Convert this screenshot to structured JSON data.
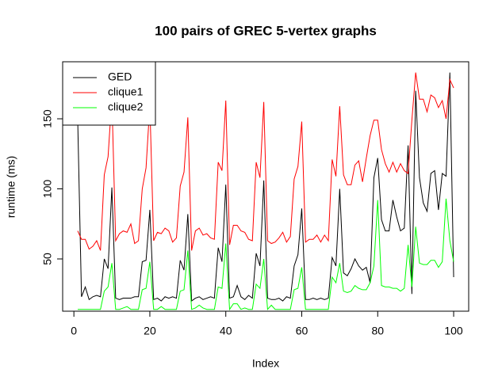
{
  "chart_data": {
    "type": "line",
    "title": "100 pairs of GREC 5-vertex graphs",
    "x_label": "Index",
    "y_label": "runtime (ms)",
    "x": [
      1,
      2,
      3,
      4,
      5,
      6,
      7,
      8,
      9,
      10,
      11,
      12,
      13,
      14,
      15,
      16,
      17,
      18,
      19,
      20,
      21,
      22,
      23,
      24,
      25,
      26,
      27,
      28,
      29,
      30,
      31,
      32,
      33,
      34,
      35,
      36,
      37,
      38,
      39,
      40,
      41,
      42,
      43,
      44,
      45,
      46,
      47,
      48,
      49,
      50,
      51,
      52,
      53,
      54,
      55,
      56,
      57,
      58,
      59,
      60,
      61,
      62,
      63,
      64,
      65,
      66,
      67,
      68,
      69,
      70,
      71,
      72,
      73,
      74,
      75,
      76,
      77,
      78,
      79,
      80,
      81,
      82,
      83,
      84,
      85,
      86,
      87,
      88,
      89,
      90,
      91,
      92,
      93,
      94,
      95,
      96,
      97,
      98,
      99,
      100
    ],
    "series": [
      {
        "name": "GED",
        "color": "#000000",
        "values": [
          150,
          23,
          30,
          21,
          23,
          24,
          23,
          50,
          43,
          101,
          22,
          21,
          22,
          22,
          22,
          23,
          23,
          48,
          49,
          85,
          21,
          22,
          20,
          23,
          22,
          23,
          22,
          49,
          42,
          82,
          20,
          22,
          23,
          21,
          22,
          23,
          22,
          58,
          48,
          103,
          22,
          23,
          31,
          23,
          21,
          24,
          22,
          54,
          45,
          106,
          22,
          21,
          21,
          22,
          20,
          23,
          22,
          45,
          53,
          86,
          21,
          21,
          22,
          21,
          22,
          21,
          22,
          51,
          45,
          100,
          40,
          38,
          43,
          50,
          45,
          42,
          44,
          33,
          108,
          122,
          78,
          70,
          70,
          92,
          80,
          70,
          72,
          131,
          25,
          170,
          108,
          90,
          84,
          111,
          113,
          85,
          111,
          109,
          183,
          37
        ]
      },
      {
        "name": "clique1",
        "color": "#ff0000",
        "values": [
          70,
          64,
          64,
          57,
          59,
          63,
          56,
          110,
          123,
          165,
          63,
          68,
          70,
          69,
          75,
          61,
          63,
          100,
          115,
          160,
          63,
          69,
          68,
          72,
          70,
          62,
          65,
          102,
          112,
          151,
          56,
          70,
          72,
          67,
          68,
          65,
          64,
          119,
          113,
          163,
          60,
          74,
          74,
          70,
          69,
          64,
          63,
          119,
          108,
          162,
          63,
          61,
          62,
          65,
          69,
          62,
          66,
          107,
          116,
          148,
          62,
          64,
          64,
          67,
          62,
          67,
          63,
          121,
          109,
          159,
          110,
          103,
          103,
          117,
          120,
          105,
          122,
          138,
          149,
          149,
          128,
          118,
          112,
          119,
          112,
          118,
          113,
          111,
          149,
          183,
          164,
          164,
          155,
          167,
          165,
          158,
          163,
          150,
          178,
          172
        ]
      },
      {
        "name": "clique2",
        "color": "#00ff00",
        "values": [
          14,
          14,
          14,
          14,
          14,
          14,
          14,
          27,
          30,
          47,
          14,
          14,
          15,
          16,
          14,
          14,
          14,
          28,
          29,
          48,
          14,
          14,
          16,
          14,
          14,
          14,
          14,
          27,
          28,
          56,
          14,
          15,
          17,
          15,
          14,
          14,
          14,
          30,
          29,
          61,
          14,
          18,
          18,
          14,
          15,
          14,
          14,
          32,
          29,
          50,
          14,
          17,
          14,
          14,
          14,
          14,
          14,
          28,
          29,
          44,
          14,
          14,
          14,
          14,
          14,
          14,
          14,
          37,
          33,
          47,
          27,
          26,
          27,
          31,
          29,
          28,
          28,
          33,
          45,
          92,
          31,
          30,
          30,
          29,
          29,
          27,
          29,
          60,
          30,
          73,
          47,
          46,
          46,
          49,
          49,
          44,
          48,
          93,
          63,
          48
        ]
      }
    ],
    "xlim": [
      -2.96,
      103.96
    ],
    "ylim": [
      12.7,
      190.7
    ],
    "xticks": [
      0,
      20,
      40,
      60,
      80,
      100
    ],
    "yticks": [
      50,
      100,
      150
    ],
    "legend": "top-left"
  }
}
